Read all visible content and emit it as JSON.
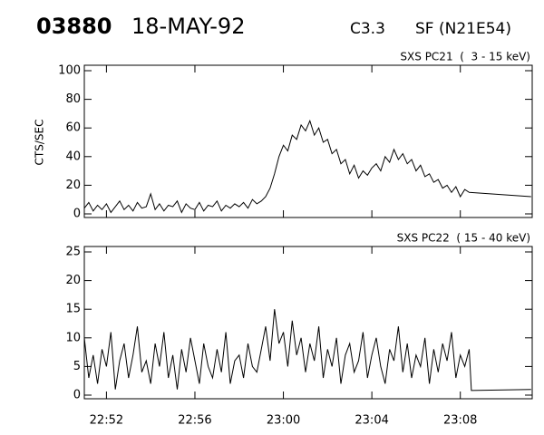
{
  "header": {
    "id": "03880",
    "date": "18-MAY-92",
    "class": "C3.3",
    "location": "SF (N21E54)"
  },
  "chart_data": [
    {
      "type": "line",
      "title": "SXS PC21  (  3 - 15 keV)",
      "ylabel": "CTS/SEC",
      "color": "#000000",
      "xlim": [
        1371,
        1391.25
      ],
      "xticks": [
        1372,
        1376,
        1380,
        1384,
        1388
      ],
      "xtick_labels": false,
      "ylim": [
        0,
        100
      ],
      "yticks": [
        0,
        20,
        40,
        60,
        80,
        100
      ],
      "x": [
        1371.0,
        1371.2,
        1371.4,
        1371.6,
        1371.8,
        1372.0,
        1372.2,
        1372.4,
        1372.6,
        1372.8,
        1373.0,
        1373.2,
        1373.4,
        1373.6,
        1373.8,
        1374.0,
        1374.2,
        1374.4,
        1374.6,
        1374.8,
        1375.0,
        1375.2,
        1375.4,
        1375.6,
        1375.8,
        1376.0,
        1376.2,
        1376.4,
        1376.6,
        1376.8,
        1377.0,
        1377.2,
        1377.4,
        1377.6,
        1377.8,
        1378.0,
        1378.2,
        1378.4,
        1378.6,
        1378.8,
        1379.0,
        1379.2,
        1379.4,
        1379.6,
        1379.8,
        1380.0,
        1380.2,
        1380.4,
        1380.6,
        1380.8,
        1381.0,
        1381.2,
        1381.4,
        1381.6,
        1381.8,
        1382.0,
        1382.2,
        1382.4,
        1382.6,
        1382.8,
        1383.0,
        1383.2,
        1383.4,
        1383.6,
        1383.8,
        1384.0,
        1384.2,
        1384.4,
        1384.6,
        1384.8,
        1385.0,
        1385.2,
        1385.4,
        1385.6,
        1385.8,
        1386.0,
        1386.2,
        1386.4,
        1386.6,
        1386.8,
        1387.0,
        1387.2,
        1387.4,
        1387.6,
        1387.8,
        1388.0,
        1388.2,
        1388.4,
        1391.2
      ],
      "values": [
        4,
        8,
        2,
        6,
        3,
        7,
        1,
        5,
        9,
        3,
        6,
        2,
        8,
        4,
        5,
        14,
        3,
        7,
        2,
        6,
        5,
        9,
        1,
        7,
        4,
        3,
        8,
        2,
        6,
        5,
        9,
        2,
        6,
        4,
        7,
        5,
        8,
        4,
        10,
        7,
        9,
        12,
        18,
        28,
        40,
        48,
        44,
        55,
        52,
        62,
        58,
        65,
        55,
        60,
        50,
        52,
        42,
        45,
        35,
        38,
        28,
        34,
        25,
        30,
        27,
        32,
        35,
        30,
        40,
        36,
        45,
        38,
        42,
        35,
        38,
        30,
        34,
        26,
        28,
        22,
        24,
        18,
        20,
        15,
        19,
        12,
        17,
        15,
        12
      ]
    },
    {
      "type": "line",
      "title": "SXS PC22  ( 15 - 40 keV)",
      "color": "#000000",
      "xlim": [
        1371,
        1391.25
      ],
      "xticks": [
        {
          "value": 1372,
          "label": "22:52"
        },
        {
          "value": 1376,
          "label": "22:56"
        },
        {
          "value": 1380,
          "label": "23:00"
        },
        {
          "value": 1384,
          "label": "23:04"
        },
        {
          "value": 1388,
          "label": "23:08"
        }
      ],
      "ylim": [
        0,
        25
      ],
      "yticks": [
        0,
        5,
        10,
        15,
        20,
        25
      ],
      "x": [
        1371.0,
        1371.2,
        1371.4,
        1371.6,
        1371.8,
        1372.0,
        1372.2,
        1372.4,
        1372.6,
        1372.8,
        1373.0,
        1373.2,
        1373.4,
        1373.6,
        1373.8,
        1374.0,
        1374.2,
        1374.4,
        1374.6,
        1374.8,
        1375.0,
        1375.2,
        1375.4,
        1375.6,
        1375.8,
        1376.0,
        1376.2,
        1376.4,
        1376.6,
        1376.8,
        1377.0,
        1377.2,
        1377.4,
        1377.6,
        1377.8,
        1378.0,
        1378.2,
        1378.4,
        1378.6,
        1378.8,
        1379.0,
        1379.2,
        1379.4,
        1379.6,
        1379.8,
        1380.0,
        1380.2,
        1380.4,
        1380.6,
        1380.8,
        1381.0,
        1381.2,
        1381.4,
        1381.6,
        1381.8,
        1382.0,
        1382.2,
        1382.4,
        1382.6,
        1382.8,
        1383.0,
        1383.2,
        1383.4,
        1383.6,
        1383.8,
        1384.0,
        1384.2,
        1384.4,
        1384.6,
        1384.8,
        1385.0,
        1385.2,
        1385.4,
        1385.6,
        1385.8,
        1386.0,
        1386.2,
        1386.4,
        1386.6,
        1386.8,
        1387.0,
        1387.2,
        1387.4,
        1387.6,
        1387.8,
        1388.0,
        1388.2,
        1388.4,
        1388.5,
        1391.2
      ],
      "values": [
        10,
        3,
        7,
        2,
        8,
        5,
        11,
        1,
        6,
        9,
        3,
        7,
        12,
        4,
        6,
        2,
        9,
        5,
        11,
        3,
        7,
        1,
        8,
        4,
        10,
        6,
        2,
        9,
        5,
        3,
        8,
        4,
        11,
        2,
        6,
        7,
        3,
        9,
        5,
        4,
        8,
        12,
        6,
        15,
        9,
        11,
        5,
        13,
        7,
        10,
        4,
        9,
        6,
        12,
        3,
        8,
        5,
        10,
        2,
        7,
        9,
        4,
        6,
        11,
        3,
        7,
        10,
        5,
        2,
        8,
        6,
        12,
        4,
        9,
        3,
        7,
        5,
        10,
        2,
        8,
        4,
        9,
        6,
        11,
        3,
        7,
        5,
        8,
        0.8,
        1.0
      ]
    }
  ]
}
